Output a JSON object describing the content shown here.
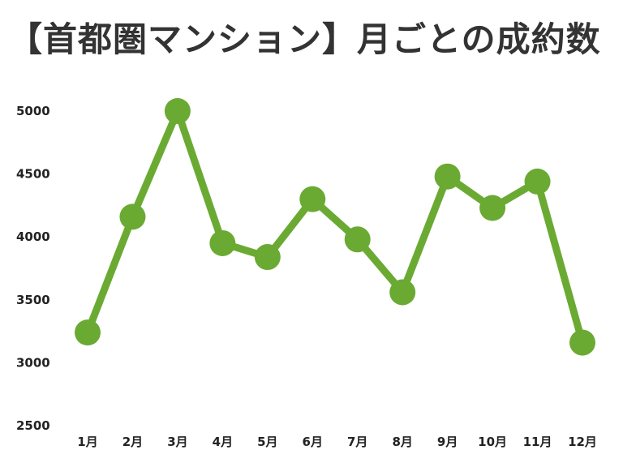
{
  "chart_data": {
    "type": "line",
    "title": "【首都圏マンション】月ごとの成約数",
    "xlabel": "",
    "ylabel": "",
    "categories": [
      "1月",
      "2月",
      "3月",
      "4月",
      "5月",
      "6月",
      "7月",
      "8月",
      "9月",
      "10月",
      "11月",
      "12月"
    ],
    "series": [
      {
        "values": [
          3240,
          4160,
          5000,
          3950,
          3840,
          4300,
          3980,
          3560,
          4480,
          4230,
          4440,
          3160
        ],
        "color": "#6aaa33"
      }
    ],
    "ylim": [
      2500,
      5000
    ],
    "yticks": [
      2500,
      3000,
      3500,
      4000,
      4500,
      5000
    ],
    "grid": false,
    "legend": "none"
  }
}
